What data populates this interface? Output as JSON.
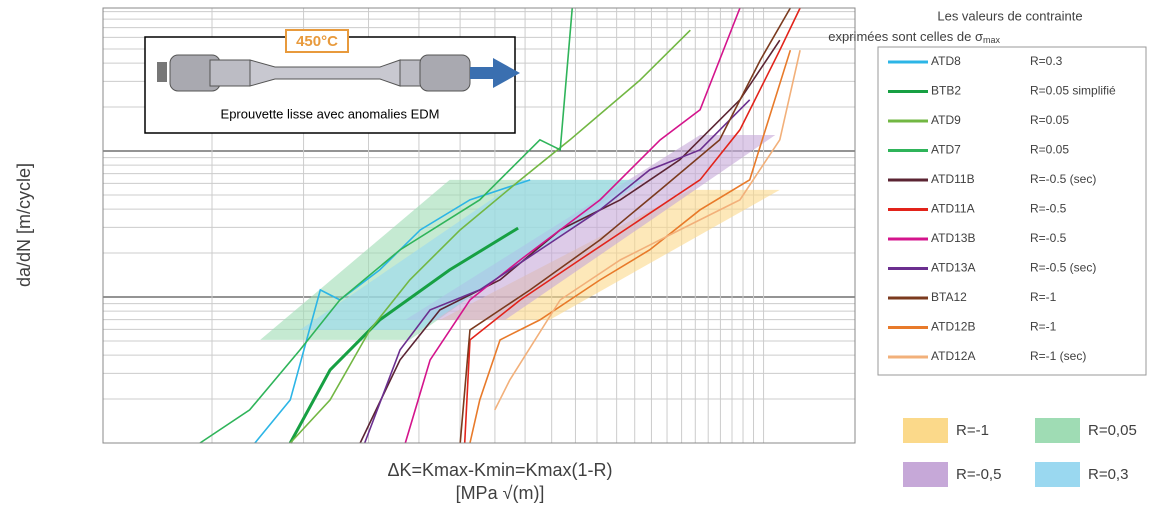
{
  "chart_data": {
    "type": "line",
    "x_label": "ΔK=Kmax-Kmin=Kmax(1-R)",
    "x_label_unit": "[MPa √(m)]",
    "y_label": "da/dN  [m/cycle]",
    "inset": {
      "temperature": "450°C",
      "caption": "Eprouvette lisse avec anomalies EDM"
    },
    "legend_header": [
      "Les valeurs de contrainte",
      "exprimées sont celles de ",
      "σ",
      "max"
    ],
    "xlim": [
      0,
      100
    ],
    "ylim": [
      0,
      100
    ],
    "series": [
      {
        "name": "ATD8",
        "condition": "R=0.3",
        "color": "#2cb5e6",
        "x": [
          20.2,
          24.9,
          28.9,
          31.5,
          36.8,
          42.2,
          48.8,
          56.8
        ],
        "y": [
          0,
          9.9,
          35.2,
          32.9,
          39.8,
          49.0,
          55.9,
          60.5
        ]
      },
      {
        "name": "BTB2",
        "condition": "R=0.05 simplifié",
        "color": "#17a043",
        "width": 3,
        "x": [
          24.9,
          30.2,
          36.8,
          46.1,
          55.2
        ],
        "y": [
          0,
          16.8,
          28.3,
          39.8,
          49.4
        ]
      },
      {
        "name": "ATD9",
        "condition": "R=0.05",
        "color": "#72b743",
        "x": [
          24.9,
          30.2,
          35.5,
          40.8,
          47.5,
          55.5,
          62.1,
          71.4,
          78.1
        ],
        "y": [
          0,
          9.9,
          26.0,
          37.5,
          49.0,
          60.5,
          69.7,
          83.4,
          94.9
        ]
      },
      {
        "name": "ATD7",
        "condition": "R=0.05",
        "color": "#2fb45a",
        "x": [
          12.9,
          19.5,
          26.2,
          31.5,
          39.5,
          50.1,
          58.1,
          60.8,
          62.4
        ],
        "y": [
          0,
          7.6,
          21.4,
          32.9,
          44.4,
          55.9,
          69.7,
          67.4,
          100
        ]
      },
      {
        "name": "ATD11B",
        "condition": "R=-0.5 (sec)",
        "color": "#5b2433",
        "x": [
          34.2,
          39.5,
          44.8,
          52.8,
          60.8,
          68.8,
          76.7,
          84.7,
          90.0
        ],
        "y": [
          0,
          19.1,
          30.6,
          37.5,
          49.0,
          55.9,
          65.1,
          78.9,
          92.6
        ]
      },
      {
        "name": "ATD11A",
        "condition": "R=-0.5",
        "color": "#e2231a",
        "x": [
          48.1,
          48.8,
          55.5,
          63.4,
          71.4,
          79.4,
          84.7,
          90.0,
          92.7
        ],
        "y": [
          0,
          23.7,
          32.9,
          42.1,
          51.3,
          60.5,
          72.0,
          90.3,
          100
        ]
      },
      {
        "name": "ATD13B",
        "condition": "R=-0.5",
        "color": "#d4148c",
        "x": [
          40.2,
          43.5,
          48.8,
          55.5,
          60.8,
          66.1,
          74.1,
          79.4,
          84.7
        ],
        "y": [
          0,
          19.1,
          32.9,
          42.1,
          49.0,
          55.9,
          69.7,
          76.6,
          100
        ]
      },
      {
        "name": "ATD13A",
        "condition": "R=-0.5 (sec)",
        "color": "#6b2f8f",
        "x": [
          34.8,
          39.5,
          43.5,
          50.1,
          58.1,
          66.1,
          72.7,
          79.4,
          86.0
        ],
        "y": [
          0,
          21.4,
          30.6,
          35.2,
          44.4,
          53.6,
          62.8,
          67.4,
          78.9
        ]
      },
      {
        "name": "BTA12",
        "condition": "R=-1",
        "color": "#7b3a1e",
        "x": [
          47.5,
          48.8,
          56.8,
          66.1,
          74.1,
          82.0,
          87.4,
          91.4
        ],
        "y": [
          0,
          26.0,
          35.2,
          46.7,
          58.2,
          69.7,
          88.0,
          100
        ]
      },
      {
        "name": "ATD12B",
        "condition": "R=-1",
        "color": "#e87a2a",
        "x": [
          48.8,
          50.1,
          52.8,
          58.1,
          66.1,
          72.7,
          79.4,
          86.0,
          91.4
        ],
        "y": [
          0,
          9.9,
          23.7,
          28.3,
          37.5,
          44.4,
          53.6,
          60.5,
          90.3
        ]
      },
      {
        "name": "ATD12A",
        "condition": "R=-1 (sec)",
        "color": "#f2b07a",
        "x": [
          52.1,
          54.1,
          60.8,
          68.8,
          76.7,
          84.7,
          90.0,
          92.7
        ],
        "y": [
          7.6,
          14.5,
          32.9,
          42.1,
          49.0,
          55.9,
          69.7,
          90.3
        ]
      }
    ],
    "bands": [
      {
        "name": "R=-1",
        "color": "#fbd98a",
        "x": [
          44.8,
          78.1,
          90.0,
          59.4
        ],
        "y": [
          28.3,
          58.2,
          58.2,
          28.3
        ]
      },
      {
        "name": "R=0,05",
        "color": "#9fdcb4",
        "x": [
          20.9,
          46.1,
          70.7,
          40.8
        ],
        "y": [
          23.7,
          60.5,
          60.5,
          23.7
        ]
      },
      {
        "name": "R=-0,5",
        "color": "#c6a8d8",
        "x": [
          40.2,
          79.4,
          89.4,
          53.5
        ],
        "y": [
          28.3,
          70.8,
          70.8,
          28.3
        ]
      },
      {
        "name": "R=0,3",
        "color": "#9ad8f0",
        "x": [
          26.2,
          55.5,
          72.1,
          42.2
        ],
        "y": [
          26.0,
          60.5,
          60.5,
          26.0
        ]
      }
    ]
  }
}
